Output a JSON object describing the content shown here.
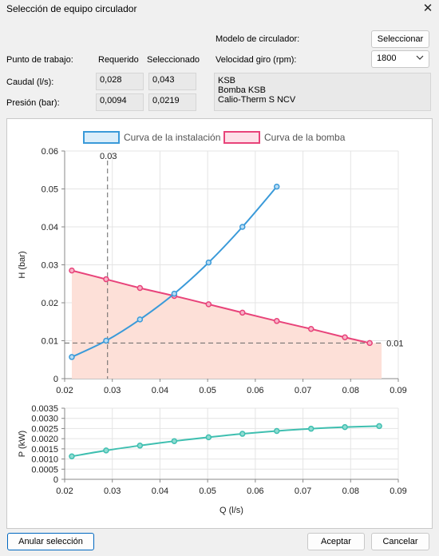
{
  "window": {
    "title": "Selección de equipo circulador",
    "close_glyph": "✕"
  },
  "operating_point": {
    "label": "Punto de trabajo:",
    "col_required": "Requerido",
    "col_selected": "Seleccionado",
    "rows": [
      {
        "label": "Caudal (l/s):",
        "required": "0,028",
        "selected": "0,043"
      },
      {
        "label": "Presión (bar):",
        "required": "0,0094",
        "selected": "0,0219"
      }
    ]
  },
  "circulator": {
    "model_label": "Modelo de circulador:",
    "select_button": "Seleccionar",
    "speed_label": "Velocidad giro (rpm):",
    "speed_value": "1800",
    "model_lines": [
      "KSB",
      "Bomba KSB",
      "Calio-Therm S NCV"
    ]
  },
  "footer": {
    "clear_selection": "Anular selección",
    "accept": "Aceptar",
    "cancel": "Cancelar"
  },
  "chart_data": [
    {
      "type": "line",
      "xlabel": "",
      "ylabel": "H (bar)",
      "xlim": [
        0.02,
        0.09
      ],
      "ylim": [
        0,
        0.06
      ],
      "x_ticks": [
        "0.02",
        "0.03",
        "0.04",
        "0.05",
        "0.06",
        "0.07",
        "0.08",
        "0.09"
      ],
      "y_ticks": [
        "0",
        "0.01",
        "0.02",
        "0.03",
        "0.04",
        "0.05",
        "0.06"
      ],
      "legend_position": "top",
      "grid": true,
      "series": [
        {
          "name": "Curva de la instalación",
          "color": "#3a9ad9",
          "points": [
            [
              0.0215,
              0.0057
            ],
            [
              0.0287,
              0.01
            ],
            [
              0.0358,
              0.0156
            ],
            [
              0.043,
              0.0224
            ],
            [
              0.0502,
              0.0306
            ],
            [
              0.0573,
              0.04
            ],
            [
              0.0645,
              0.0506
            ]
          ]
        },
        {
          "name": "Curva de la bomba",
          "color": "#e8437a",
          "fill": "#fde0d8",
          "points": [
            [
              0.0215,
              0.0285
            ],
            [
              0.0287,
              0.0262
            ],
            [
              0.0358,
              0.0239
            ],
            [
              0.043,
              0.0218
            ],
            [
              0.0502,
              0.0196
            ],
            [
              0.0573,
              0.0174
            ],
            [
              0.0645,
              0.0152
            ],
            [
              0.0717,
              0.0131
            ],
            [
              0.0788,
              0.0109
            ],
            [
              0.084,
              0.0094
            ]
          ],
          "fill_end_x": 0.0865,
          "fill_end_y": 0.0076
        }
      ],
      "annotations": [
        {
          "type": "vline",
          "x": 0.029,
          "label": "0.03"
        },
        {
          "type": "hline",
          "y": 0.0094,
          "label": "0.01"
        }
      ]
    },
    {
      "type": "line",
      "xlabel": "Q (l/s)",
      "ylabel": "P (kW)",
      "xlim": [
        0.02,
        0.09
      ],
      "ylim": [
        0,
        0.0035
      ],
      "x_ticks": [
        "0.02",
        "0.03",
        "0.04",
        "0.05",
        "0.06",
        "0.07",
        "0.08",
        "0.09"
      ],
      "y_ticks": [
        "0",
        "0.0005",
        "0.0010",
        "0.0015",
        "0.0020",
        "0.0025",
        "0.0030",
        "0.0035"
      ],
      "grid": true,
      "series": [
        {
          "name": "",
          "color": "#3fbfb0",
          "points": [
            [
              0.0215,
              0.00113
            ],
            [
              0.0287,
              0.00142
            ],
            [
              0.0358,
              0.00166
            ],
            [
              0.043,
              0.00188
            ],
            [
              0.0502,
              0.00207
            ],
            [
              0.0573,
              0.00224
            ],
            [
              0.0645,
              0.00238
            ],
            [
              0.0717,
              0.00249
            ],
            [
              0.0788,
              0.00257
            ],
            [
              0.086,
              0.00262
            ]
          ]
        }
      ]
    }
  ]
}
